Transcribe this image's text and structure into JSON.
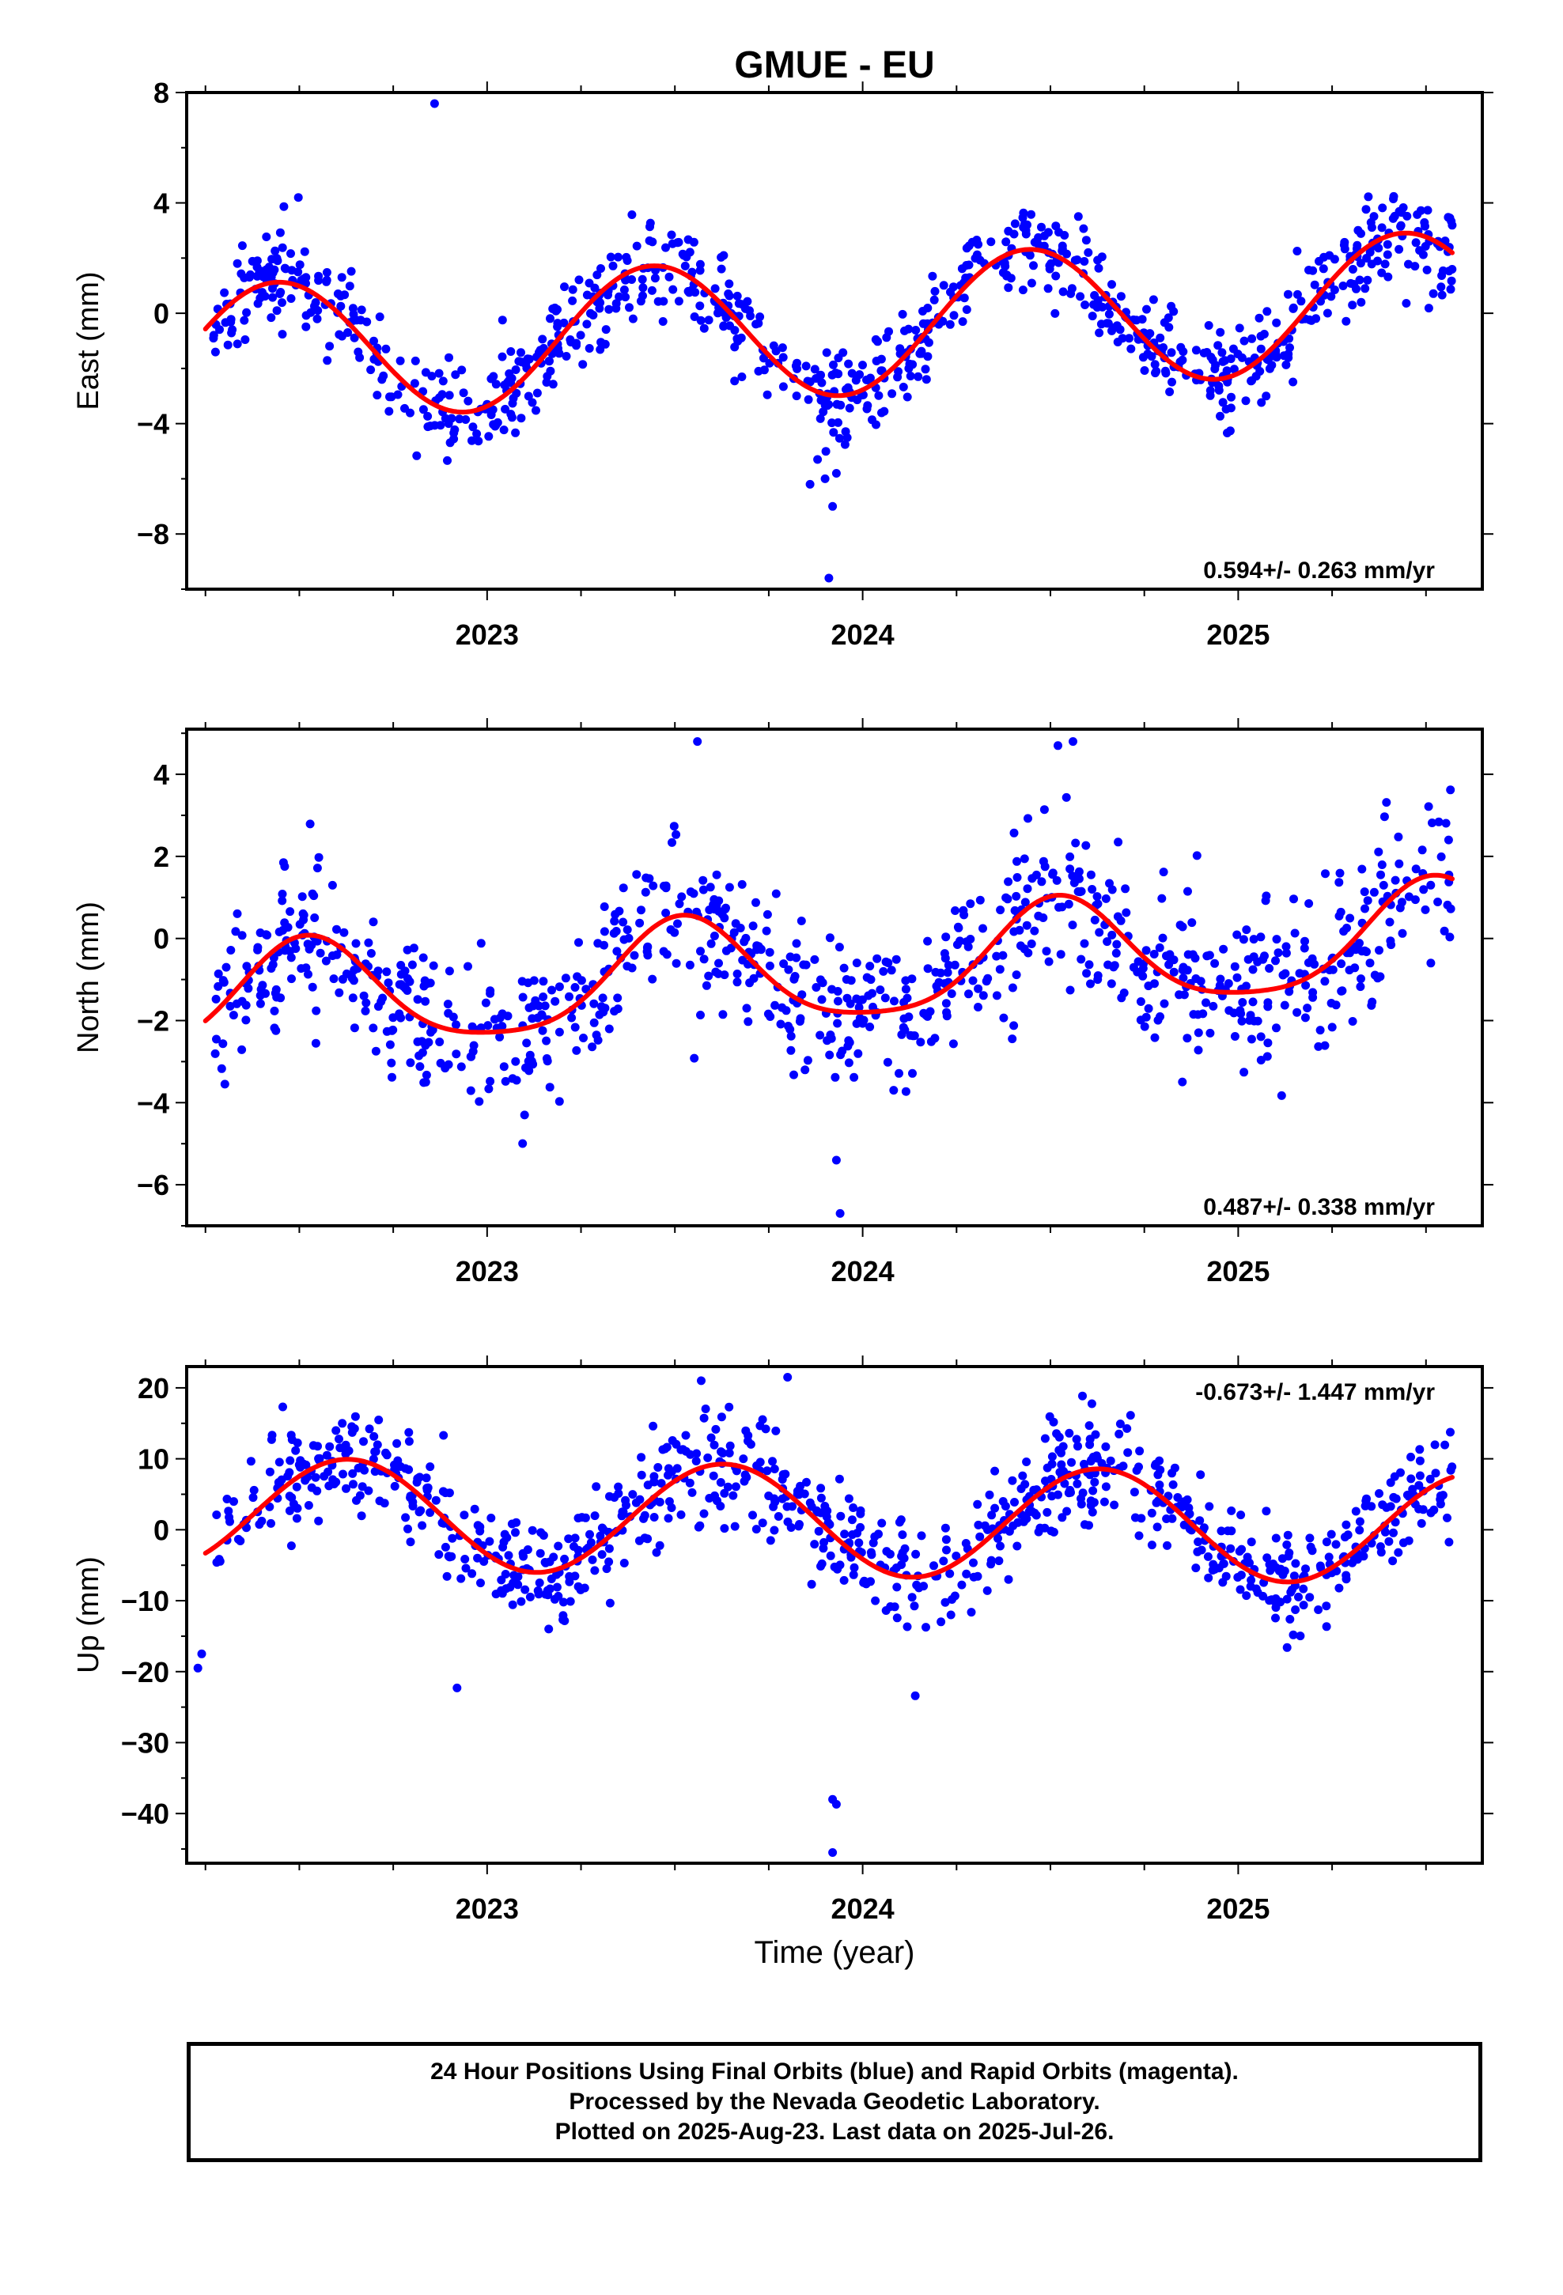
{
  "chart_data": {
    "title": "GMUE - EU",
    "xlabel": "Time (year)",
    "x_tick_labels": [
      "2023",
      "2024",
      "2025"
    ],
    "x_tick_values": [
      2023,
      2024,
      2025
    ],
    "xlim": [
      2022.2,
      2025.65
    ],
    "series_colors": {
      "final_orbits": "#0000ff",
      "rapid_orbits": "#ff00ff",
      "model_fit": "#ff0000"
    },
    "panels": [
      {
        "type": "scatter",
        "id": "east",
        "ylabel": "East (mm)",
        "ylim": [
          -10,
          8
        ],
        "yticks": [
          -8,
          -4,
          0,
          4,
          8
        ],
        "ytick_labels": [
          "−8",
          "−4",
          "0",
          "4",
          "8"
        ],
        "rate_label": "0.594+/- 0.263 mm/yr",
        "rate_position": "bottom-right",
        "fit": {
          "offset": -0.45,
          "rate": 0.594,
          "amplitude": 2.5,
          "amp2": 0.0,
          "phase_peak": 0.44
        },
        "scatter": {
          "noise": 0.9,
          "n": 900,
          "seed": 11
        },
        "outliers": [
          [
            2022.86,
            7.6
          ],
          [
            2023.91,
            -9.6
          ],
          [
            2023.92,
            -7.0
          ],
          [
            2023.9,
            -6.0
          ],
          [
            2023.86,
            -6.2
          ],
          [
            2023.93,
            -5.8
          ],
          [
            2023.88,
            -5.3
          ]
        ]
      },
      {
        "type": "scatter",
        "id": "north",
        "ylabel": "North (mm)",
        "ylim": [
          -7,
          5.1
        ],
        "yticks": [
          -6,
          -4,
          -2,
          0,
          2,
          4
        ],
        "ytick_labels": [
          "−6",
          "−4",
          "−2",
          "0",
          "2",
          "4"
        ],
        "rate_label": "0.487+/- 0.338 mm/yr",
        "rate_position": "bottom-right",
        "fit": {
          "offset": -0.75,
          "rate": 0.487,
          "amplitude": 1.3,
          "amp2": 0.25,
          "phase_peak": 0.52
        },
        "scatter": {
          "noise": 0.95,
          "n": 900,
          "seed": 23
        },
        "outliers": [
          [
            2023.93,
            -5.4
          ],
          [
            2023.94,
            -6.7
          ],
          [
            2023.56,
            4.8
          ],
          [
            2024.56,
            4.8
          ],
          [
            2024.52,
            4.7
          ]
        ]
      },
      {
        "type": "scatter",
        "id": "up",
        "ylabel": "Up (mm)",
        "ylim": [
          -47,
          23
        ],
        "yticks": [
          -40,
          -30,
          -20,
          -10,
          0,
          10,
          20
        ],
        "ytick_labels": [
          "−40",
          "−30",
          "−20",
          "−10",
          "0",
          "10",
          "20"
        ],
        "rate_label": "-0.673+/- 1.447 mm/yr",
        "rate_position": "top-right",
        "fit": {
          "offset": 1.2,
          "rate": -0.673,
          "amplitude": 7.8,
          "amp2": 0.0,
          "phase_peak": 0.63
        },
        "scatter": {
          "noise": 3.8,
          "n": 900,
          "seed": 37
        },
        "outliers": [
          [
            2022.23,
            -19.5
          ],
          [
            2022.24,
            -17.5
          ],
          [
            2023.92,
            -38.0
          ],
          [
            2023.93,
            -38.7
          ],
          [
            2023.92,
            -45.5
          ],
          [
            2022.92,
            -22.3
          ],
          [
            2024.14,
            -23.4
          ],
          [
            2023.8,
            21.5
          ],
          [
            2023.57,
            21.0
          ]
        ]
      }
    ]
  },
  "footer": {
    "line1": "24 Hour Positions Using Final Orbits (blue) and Rapid Orbits (magenta).",
    "line2": "Processed by the Nevada Geodetic Laboratory.",
    "line3": "Plotted on 2025-Aug-23. Last data on 2025-Jul-26."
  }
}
